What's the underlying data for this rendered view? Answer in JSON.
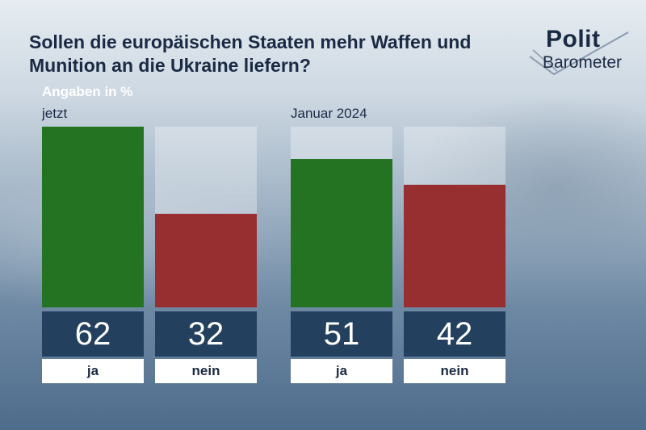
{
  "title": "Sollen die europäischen Staaten mehr Waffen und Munition an die Ukraine liefern?",
  "logo": {
    "line1": "Polit",
    "line2": "Barometer"
  },
  "unit_label": "Angaben in %",
  "colors": {
    "ja": "#237323",
    "nein": "#972f31",
    "value_box": "#24405f",
    "text": "#1b2a44"
  },
  "chart_data": [
    {
      "type": "bar",
      "group_label": "jetzt",
      "categories": [
        "ja",
        "nein"
      ],
      "values": [
        62,
        32
      ],
      "ylim": [
        0,
        62
      ],
      "grid": false,
      "legend": "none"
    },
    {
      "type": "bar",
      "group_label": "Januar 2024",
      "categories": [
        "ja",
        "nein"
      ],
      "values": [
        51,
        42
      ],
      "ylim": [
        0,
        62
      ],
      "grid": false,
      "legend": "none"
    }
  ]
}
